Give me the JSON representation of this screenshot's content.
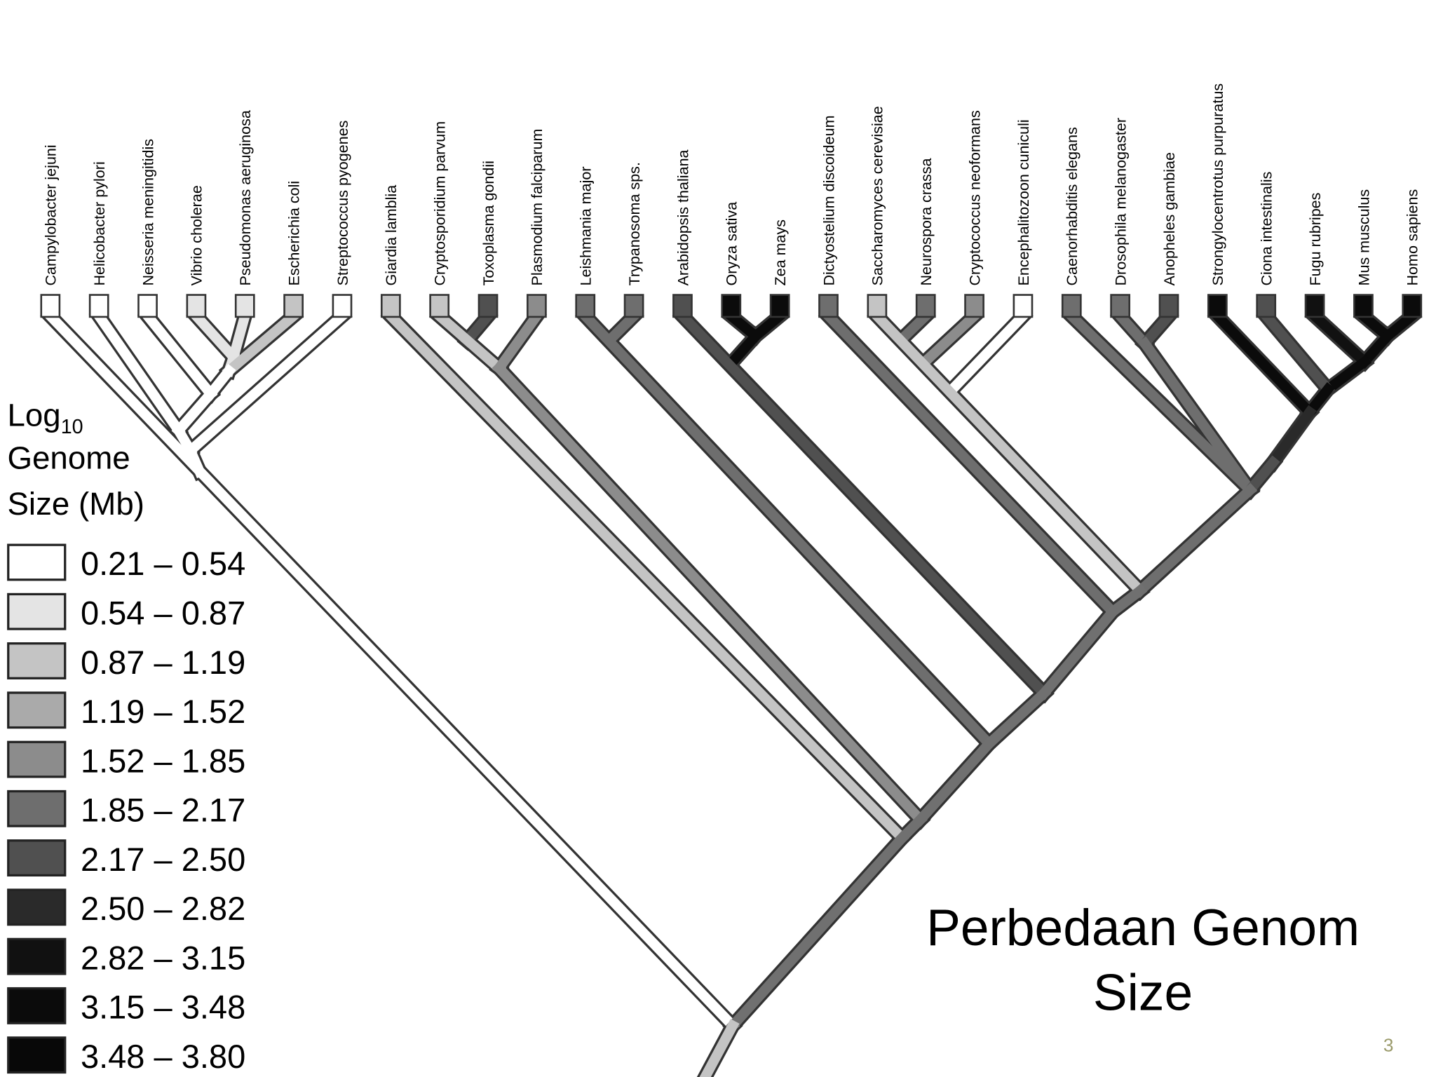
{
  "taxa": [
    {
      "name": "Campylobacter jejuni",
      "color": "#ffffff"
    },
    {
      "name": "Helicobacter pylori",
      "color": "#ffffff"
    },
    {
      "name": "Neisseria meningitidis",
      "color": "#ffffff"
    },
    {
      "name": "Vibrio cholerae",
      "color": "#e4e4e4"
    },
    {
      "name": "Pseudomonas aeruginosa",
      "color": "#e4e4e4"
    },
    {
      "name": "Escherichia coli",
      "color": "#c4c4c4"
    },
    {
      "name": "Streptococcus pyogenes",
      "color": "#ffffff"
    },
    {
      "name": "Giardia lamblia",
      "color": "#c4c4c4"
    },
    {
      "name": "Cryptosporidium parvum",
      "color": "#c4c4c4"
    },
    {
      "name": "Toxoplasma gondii",
      "color": "#505050"
    },
    {
      "name": "Plasmodium falciparum",
      "color": "#8c8c8c"
    },
    {
      "name": "Leishmania major",
      "color": "#6e6e6e"
    },
    {
      "name": "Trypanosoma sps.",
      "color": "#6e6e6e"
    },
    {
      "name": "Arabidopsis thaliana",
      "color": "#505050"
    },
    {
      "name": "Oryza sativa",
      "color": "#0b0b0b"
    },
    {
      "name": "Zea mays",
      "color": "#0b0b0b"
    },
    {
      "name": "Dictyostelium discoideum",
      "color": "#6e6e6e"
    },
    {
      "name": "Saccharomyces cerevisiae",
      "color": "#c4c4c4"
    },
    {
      "name": "Neurospora crassa",
      "color": "#6e6e6e"
    },
    {
      "name": "Cryptococcus neoformans",
      "color": "#8c8c8c"
    },
    {
      "name": "Encephalitozoon cuniculi",
      "color": "#ffffff"
    },
    {
      "name": "Caenorhabditis elegans",
      "color": "#6e6e6e"
    },
    {
      "name": "Drosophila melanogaster",
      "color": "#6e6e6e"
    },
    {
      "name": "Anopheles gambiae",
      "color": "#505050"
    },
    {
      "name": "Strongylocentrotus purpuratus",
      "color": "#0b0b0b"
    },
    {
      "name": "Ciona intestinalis",
      "color": "#505050"
    },
    {
      "name": "Fugu rubripes",
      "color": "#111111"
    },
    {
      "name": "Mus musculus",
      "color": "#0b0b0b"
    },
    {
      "name": "Homo sapiens",
      "color": "#0b0b0b"
    }
  ],
  "legend": {
    "title": {
      "log": "Log",
      "sub": "10",
      "line2": "Genome",
      "line3": "Size (Mb)"
    },
    "entries": [
      {
        "label": "0.21 – 0.54",
        "color": "#ffffff"
      },
      {
        "label": "0.54 – 0.87",
        "color": "#e4e4e4"
      },
      {
        "label": "0.87 – 1.19",
        "color": "#c4c4c4"
      },
      {
        "label": "1.19 – 1.52",
        "color": "#aaaaaa"
      },
      {
        "label": "1.52 – 1.85",
        "color": "#8c8c8c"
      },
      {
        "label": "1.85 – 2.17",
        "color": "#6e6e6e"
      },
      {
        "label": "2.17 – 2.50",
        "color": "#505050"
      },
      {
        "label": "2.50 – 2.82",
        "color": "#2a2a2a"
      },
      {
        "label": "2.82 – 3.15",
        "color": "#111111"
      },
      {
        "label": "3.15 – 3.48",
        "color": "#0b0b0b"
      },
      {
        "label": "3.48 – 3.80",
        "color": "#080808"
      }
    ]
  },
  "title": [
    "Perbedaan Genom",
    "Size"
  ],
  "page_number": "3"
}
